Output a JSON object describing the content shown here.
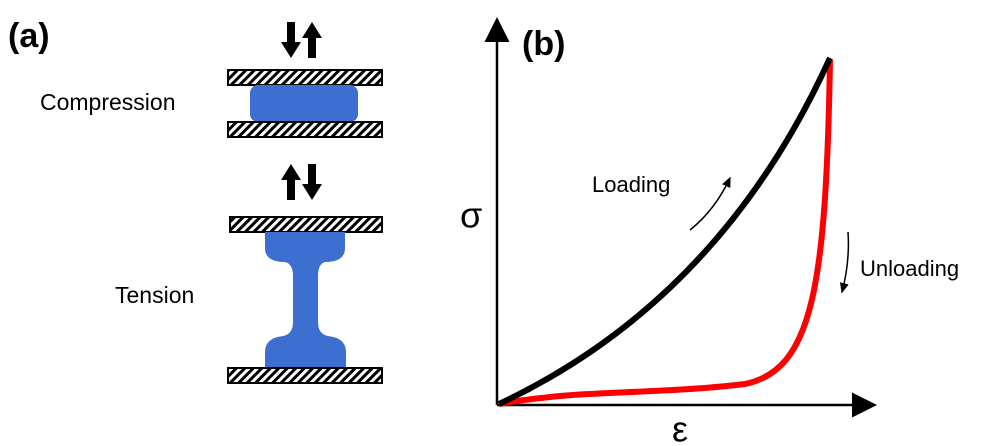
{
  "panel_a": {
    "label": "(a)",
    "compression_label": "Compression",
    "tension_label": "Tension"
  },
  "panel_b": {
    "label": "(b)",
    "y_axis_label": "σ",
    "x_axis_label": "ε",
    "loading_label": "Loading",
    "unloading_label": "Unloading"
  }
}
